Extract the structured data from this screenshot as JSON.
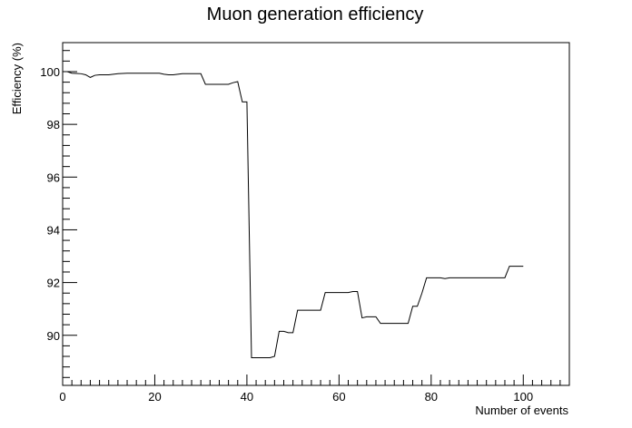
{
  "chart_data": {
    "type": "line",
    "title": "Muon generation efficiency",
    "xlabel": "Number of events",
    "ylabel": "Efficiency (%)",
    "xlim": [
      0,
      110
    ],
    "ylim": [
      88.1,
      101.1
    ],
    "x_ticks": [
      0,
      20,
      40,
      60,
      80,
      100
    ],
    "y_ticks": [
      90,
      92,
      94,
      96,
      98,
      100
    ],
    "x_minor_step": 2,
    "y_minor_step": 0.4,
    "grid": false,
    "legend": "none",
    "series": [
      {
        "color": "#000000",
        "points": [
          [
            0,
            100.0
          ],
          [
            1,
            100.0
          ],
          [
            2,
            99.94
          ],
          [
            3,
            99.93
          ],
          [
            4,
            99.92
          ],
          [
            5,
            99.88
          ],
          [
            6,
            99.78
          ],
          [
            7,
            99.86
          ],
          [
            8,
            99.88
          ],
          [
            9,
            99.88
          ],
          [
            10,
            99.88
          ],
          [
            11,
            99.9
          ],
          [
            12,
            99.92
          ],
          [
            13,
            99.93
          ],
          [
            14,
            99.94
          ],
          [
            15,
            99.94
          ],
          [
            16,
            99.94
          ],
          [
            17,
            99.94
          ],
          [
            18,
            99.94
          ],
          [
            19,
            99.94
          ],
          [
            20,
            99.94
          ],
          [
            21,
            99.94
          ],
          [
            22,
            99.9
          ],
          [
            23,
            99.88
          ],
          [
            24,
            99.88
          ],
          [
            25,
            99.9
          ],
          [
            26,
            99.92
          ],
          [
            27,
            99.92
          ],
          [
            28,
            99.92
          ],
          [
            29,
            99.92
          ],
          [
            30,
            99.92
          ],
          [
            31,
            99.52
          ],
          [
            32,
            99.52
          ],
          [
            33,
            99.52
          ],
          [
            34,
            99.52
          ],
          [
            35,
            99.52
          ],
          [
            36,
            99.52
          ],
          [
            37,
            99.58
          ],
          [
            38,
            99.62
          ],
          [
            39,
            98.85
          ],
          [
            40,
            98.85
          ],
          [
            41,
            89.15
          ],
          [
            42,
            89.15
          ],
          [
            43,
            89.15
          ],
          [
            44,
            89.15
          ],
          [
            45,
            89.15
          ],
          [
            46,
            89.2
          ],
          [
            47,
            90.15
          ],
          [
            48,
            90.15
          ],
          [
            49,
            90.1
          ],
          [
            50,
            90.1
          ],
          [
            51,
            90.95
          ],
          [
            52,
            90.95
          ],
          [
            53,
            90.95
          ],
          [
            54,
            90.95
          ],
          [
            55,
            90.95
          ],
          [
            56,
            90.95
          ],
          [
            57,
            91.62
          ],
          [
            58,
            91.62
          ],
          [
            59,
            91.62
          ],
          [
            60,
            91.62
          ],
          [
            61,
            91.62
          ],
          [
            62,
            91.62
          ],
          [
            63,
            91.66
          ],
          [
            64,
            91.66
          ],
          [
            65,
            90.66
          ],
          [
            66,
            90.7
          ],
          [
            67,
            90.7
          ],
          [
            68,
            90.7
          ],
          [
            69,
            90.45
          ],
          [
            70,
            90.45
          ],
          [
            71,
            90.45
          ],
          [
            72,
            90.45
          ],
          [
            73,
            90.45
          ],
          [
            74,
            90.45
          ],
          [
            75,
            90.45
          ],
          [
            76,
            91.1
          ],
          [
            77,
            91.1
          ],
          [
            78,
            91.6
          ],
          [
            79,
            92.18
          ],
          [
            80,
            92.18
          ],
          [
            81,
            92.18
          ],
          [
            82,
            92.18
          ],
          [
            83,
            92.15
          ],
          [
            84,
            92.18
          ],
          [
            85,
            92.18
          ],
          [
            86,
            92.18
          ],
          [
            87,
            92.18
          ],
          [
            88,
            92.18
          ],
          [
            89,
            92.18
          ],
          [
            90,
            92.18
          ],
          [
            91,
            92.18
          ],
          [
            92,
            92.18
          ],
          [
            93,
            92.18
          ],
          [
            94,
            92.18
          ],
          [
            95,
            92.18
          ],
          [
            96,
            92.18
          ],
          [
            97,
            92.62
          ],
          [
            98,
            92.62
          ],
          [
            99,
            92.62
          ],
          [
            100,
            92.62
          ]
        ]
      }
    ]
  }
}
